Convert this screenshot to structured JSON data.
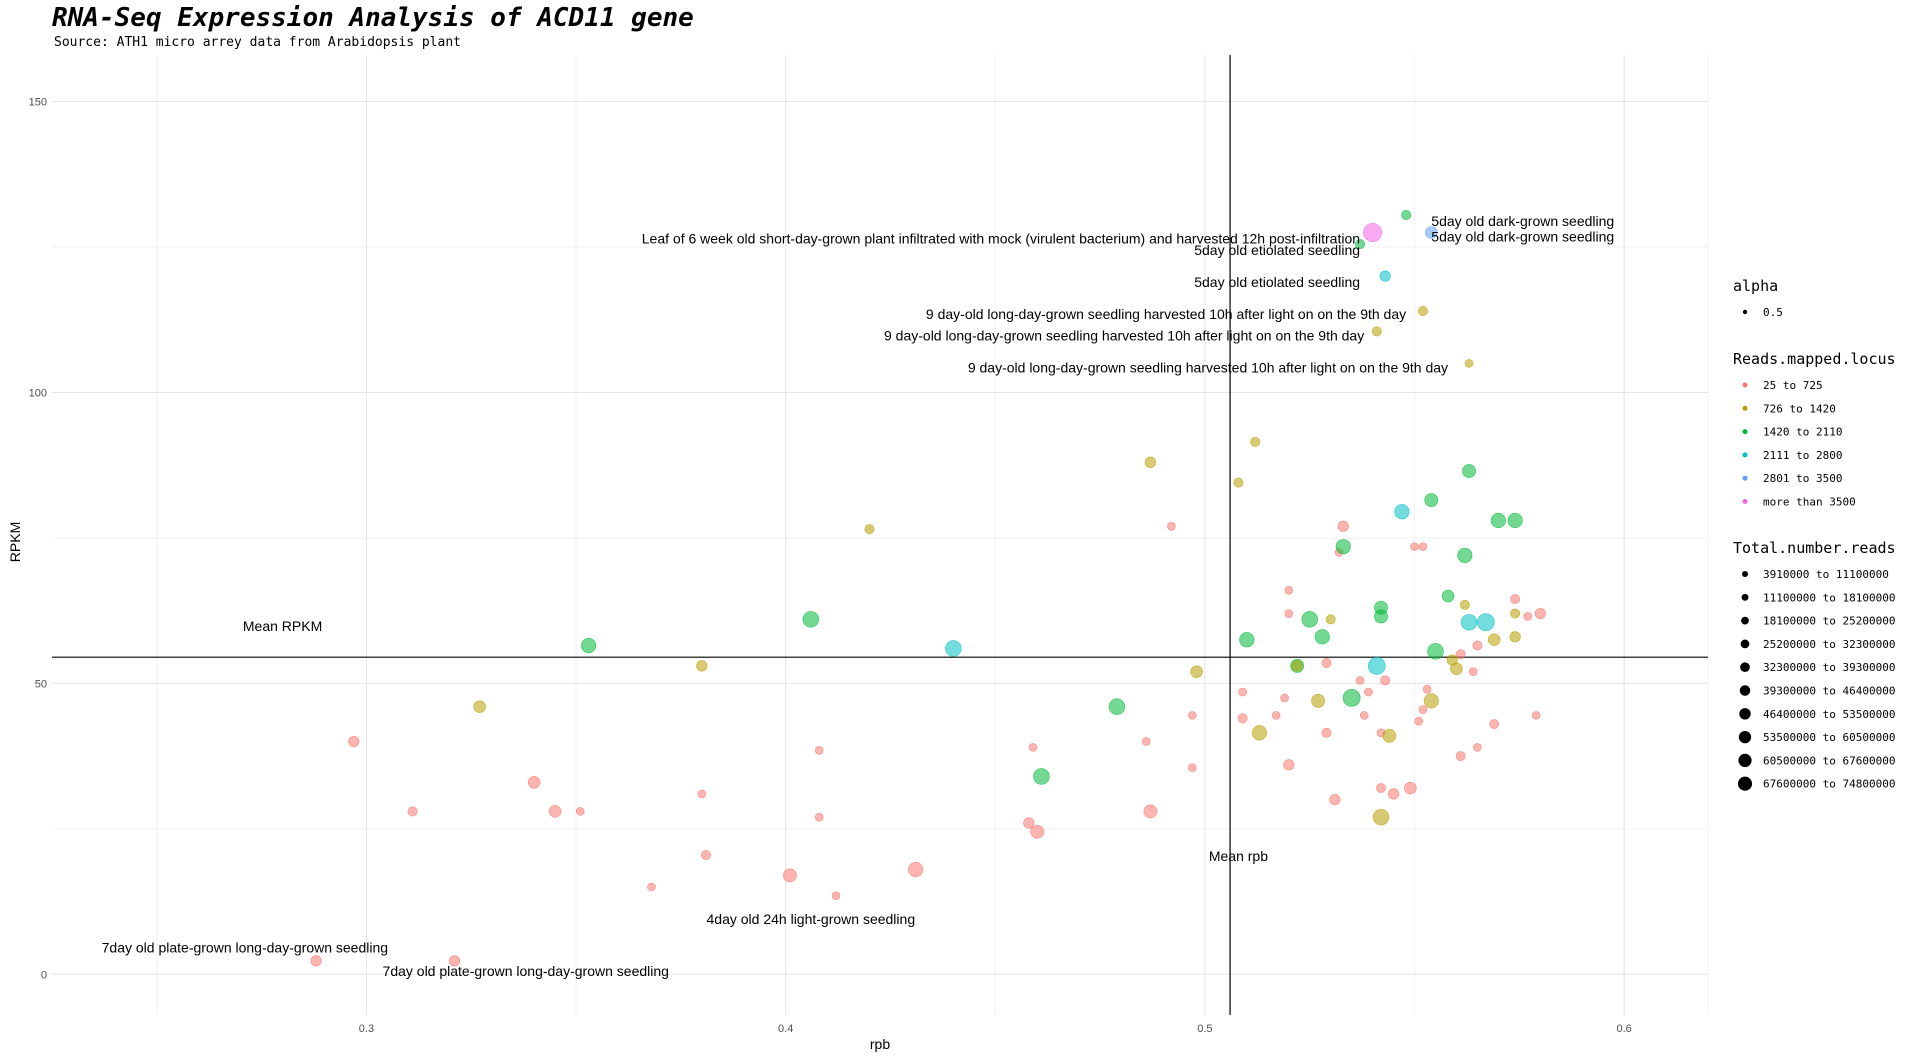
{
  "chart_data": {
    "type": "scatter",
    "title": "RNA-Seq Expression Analysis of ACD11 gene",
    "subtitle": "Source: ATH1 micro arrey data from Arabidopsis plant",
    "xlabel": "rpb",
    "ylabel": "RPKM",
    "xlim": [
      0.225,
      0.62
    ],
    "ylim": [
      -7,
      158
    ],
    "xticks": [
      0.3,
      0.4,
      0.5,
      0.6
    ],
    "yticks": [
      0,
      50,
      100,
      150
    ],
    "grid": true,
    "legend_position": "right",
    "reference_lines": [
      {
        "orientation": "horizontal",
        "value": 54.5,
        "label": "Mean RPKM",
        "label_x": 0.28,
        "label_y": 59
      },
      {
        "orientation": "vertical",
        "value": 0.506,
        "label": "Mean rpb",
        "label_x": 0.508,
        "label_y": 19.5
      }
    ],
    "legend": {
      "alpha": {
        "title": "alpha",
        "entries": [
          "0.5"
        ]
      },
      "color": {
        "title": "Reads.mapped.locus",
        "entries": [
          {
            "label": "25 to 725",
            "color": "#F8766D"
          },
          {
            "label": "726 to 1420",
            "color": "#B79F00"
          },
          {
            "label": "1420 to 2110",
            "color": "#00BA38"
          },
          {
            "label": "2111 to 2800",
            "color": "#00BFC4"
          },
          {
            "label": "2801 to 3500",
            "color": "#619CFF"
          },
          {
            "label": "more than 3500",
            "color": "#F564E3"
          }
        ]
      },
      "size": {
        "title": "Total.number.reads",
        "entries": [
          "3910000 to 11100000",
          "11100000 to 18100000",
          "18100000 to 25200000",
          "25200000 to 32300000",
          "32300000 to 39300000",
          "39300000 to 46400000",
          "46400000 to 53500000",
          "53500000 to 60500000",
          "60500000 to 67600000",
          "67600000 to 74800000"
        ]
      }
    },
    "points": [
      {
        "x": 0.288,
        "y": 2.3,
        "c": 0,
        "s": 2
      },
      {
        "x": 0.321,
        "y": 2.3,
        "c": 0,
        "s": 2
      },
      {
        "x": 0.297,
        "y": 40,
        "c": 0,
        "s": 2
      },
      {
        "x": 0.311,
        "y": 28,
        "c": 0,
        "s": 1
      },
      {
        "x": 0.327,
        "y": 46,
        "c": 1,
        "s": 3
      },
      {
        "x": 0.34,
        "y": 33,
        "c": 0,
        "s": 3
      },
      {
        "x": 0.345,
        "y": 28,
        "c": 0,
        "s": 3
      },
      {
        "x": 0.351,
        "y": 28,
        "c": 0,
        "s": 0
      },
      {
        "x": 0.353,
        "y": 56.5,
        "c": 2,
        "s": 5
      },
      {
        "x": 0.368,
        "y": 15,
        "c": 0,
        "s": 0
      },
      {
        "x": 0.38,
        "y": 53,
        "c": 1,
        "s": 2
      },
      {
        "x": 0.38,
        "y": 31,
        "c": 0,
        "s": 0
      },
      {
        "x": 0.381,
        "y": 20.5,
        "c": 0,
        "s": 1
      },
      {
        "x": 0.401,
        "y": 17,
        "c": 0,
        "s": 4
      },
      {
        "x": 0.406,
        "y": 61,
        "c": 2,
        "s": 6
      },
      {
        "x": 0.408,
        "y": 38.5,
        "c": 0,
        "s": 0
      },
      {
        "x": 0.408,
        "y": 27,
        "c": 0,
        "s": 0
      },
      {
        "x": 0.412,
        "y": 13.5,
        "c": 0,
        "s": 0
      },
      {
        "x": 0.42,
        "y": 76.5,
        "c": 1,
        "s": 1
      },
      {
        "x": 0.431,
        "y": 18,
        "c": 0,
        "s": 5
      },
      {
        "x": 0.44,
        "y": 56,
        "c": 3,
        "s": 6
      },
      {
        "x": 0.458,
        "y": 26,
        "c": 0,
        "s": 2
      },
      {
        "x": 0.459,
        "y": 39,
        "c": 0,
        "s": 0
      },
      {
        "x": 0.46,
        "y": 24.5,
        "c": 0,
        "s": 4
      },
      {
        "x": 0.461,
        "y": 34,
        "c": 2,
        "s": 6
      },
      {
        "x": 0.479,
        "y": 46,
        "c": 2,
        "s": 6
      },
      {
        "x": 0.486,
        "y": 40,
        "c": 0,
        "s": 0
      },
      {
        "x": 0.487,
        "y": 88,
        "c": 1,
        "s": 2
      },
      {
        "x": 0.487,
        "y": 28,
        "c": 0,
        "s": 4
      },
      {
        "x": 0.492,
        "y": 77,
        "c": 0,
        "s": 0
      },
      {
        "x": 0.497,
        "y": 44.5,
        "c": 0,
        "s": 0
      },
      {
        "x": 0.497,
        "y": 35.5,
        "c": 0,
        "s": 0
      },
      {
        "x": 0.498,
        "y": 52,
        "c": 1,
        "s": 3
      },
      {
        "x": 0.508,
        "y": 84.5,
        "c": 1,
        "s": 1
      },
      {
        "x": 0.509,
        "y": 48.5,
        "c": 0,
        "s": 0
      },
      {
        "x": 0.509,
        "y": 44,
        "c": 0,
        "s": 1
      },
      {
        "x": 0.51,
        "y": 57.5,
        "c": 2,
        "s": 5
      },
      {
        "x": 0.512,
        "y": 91.5,
        "c": 1,
        "s": 1
      },
      {
        "x": 0.513,
        "y": 41.5,
        "c": 1,
        "s": 5
      },
      {
        "x": 0.517,
        "y": 44.5,
        "c": 0,
        "s": 0
      },
      {
        "x": 0.519,
        "y": 47.5,
        "c": 0,
        "s": 0
      },
      {
        "x": 0.52,
        "y": 66,
        "c": 0,
        "s": 0
      },
      {
        "x": 0.52,
        "y": 62,
        "c": 0,
        "s": 0
      },
      {
        "x": 0.52,
        "y": 36,
        "c": 0,
        "s": 2
      },
      {
        "x": 0.522,
        "y": 53,
        "c": 2,
        "s": 4
      },
      {
        "x": 0.522,
        "y": 53,
        "c": 1,
        "s": 2
      },
      {
        "x": 0.525,
        "y": 61,
        "c": 2,
        "s": 6
      },
      {
        "x": 0.527,
        "y": 47,
        "c": 1,
        "s": 4
      },
      {
        "x": 0.528,
        "y": 58,
        "c": 2,
        "s": 5
      },
      {
        "x": 0.529,
        "y": 53.5,
        "c": 0,
        "s": 1
      },
      {
        "x": 0.529,
        "y": 41.5,
        "c": 0,
        "s": 1
      },
      {
        "x": 0.53,
        "y": 61,
        "c": 1,
        "s": 1
      },
      {
        "x": 0.531,
        "y": 30,
        "c": 0,
        "s": 2
      },
      {
        "x": 0.532,
        "y": 72.5,
        "c": 0,
        "s": 0
      },
      {
        "x": 0.533,
        "y": 73.5,
        "c": 2,
        "s": 5
      },
      {
        "x": 0.533,
        "y": 77,
        "c": 0,
        "s": 2
      },
      {
        "x": 0.535,
        "y": 47.5,
        "c": 2,
        "s": 7
      },
      {
        "x": 0.537,
        "y": 50.5,
        "c": 0,
        "s": 0
      },
      {
        "x": 0.537,
        "y": 125.5,
        "c": 2,
        "s": 1
      },
      {
        "x": 0.538,
        "y": 44.5,
        "c": 0,
        "s": 0
      },
      {
        "x": 0.539,
        "y": 48.5,
        "c": 0,
        "s": 0
      },
      {
        "x": 0.54,
        "y": 127.5,
        "c": 5,
        "s": 8
      },
      {
        "x": 0.541,
        "y": 53,
        "c": 3,
        "s": 7
      },
      {
        "x": 0.541,
        "y": 110.5,
        "c": 1,
        "s": 1
      },
      {
        "x": 0.542,
        "y": 63,
        "c": 2,
        "s": 4
      },
      {
        "x": 0.542,
        "y": 61.5,
        "c": 2,
        "s": 4
      },
      {
        "x": 0.542,
        "y": 41.5,
        "c": 0,
        "s": 0
      },
      {
        "x": 0.542,
        "y": 32,
        "c": 0,
        "s": 1
      },
      {
        "x": 0.542,
        "y": 27,
        "c": 1,
        "s": 6
      },
      {
        "x": 0.543,
        "y": 120,
        "c": 3,
        "s": 2
      },
      {
        "x": 0.543,
        "y": 50.5,
        "c": 0,
        "s": 1
      },
      {
        "x": 0.544,
        "y": 41,
        "c": 1,
        "s": 4
      },
      {
        "x": 0.545,
        "y": 31,
        "c": 0,
        "s": 2
      },
      {
        "x": 0.547,
        "y": 79.5,
        "c": 3,
        "s": 5
      },
      {
        "x": 0.548,
        "y": 130.5,
        "c": 2,
        "s": 1
      },
      {
        "x": 0.549,
        "y": 32,
        "c": 0,
        "s": 3
      },
      {
        "x": 0.55,
        "y": 73.5,
        "c": 0,
        "s": 0
      },
      {
        "x": 0.551,
        "y": 43.5,
        "c": 0,
        "s": 0
      },
      {
        "x": 0.552,
        "y": 45.5,
        "c": 0,
        "s": 0
      },
      {
        "x": 0.552,
        "y": 73.5,
        "c": 0,
        "s": 0
      },
      {
        "x": 0.552,
        "y": 114,
        "c": 1,
        "s": 1
      },
      {
        "x": 0.553,
        "y": 49,
        "c": 0,
        "s": 0
      },
      {
        "x": 0.554,
        "y": 127.5,
        "c": 4,
        "s": 3
      },
      {
        "x": 0.554,
        "y": 47,
        "c": 1,
        "s": 5
      },
      {
        "x": 0.554,
        "y": 81.5,
        "c": 2,
        "s": 4
      },
      {
        "x": 0.555,
        "y": 55.5,
        "c": 2,
        "s": 6
      },
      {
        "x": 0.558,
        "y": 65,
        "c": 2,
        "s": 3
      },
      {
        "x": 0.559,
        "y": 54,
        "c": 1,
        "s": 2
      },
      {
        "x": 0.56,
        "y": 52.5,
        "c": 1,
        "s": 3
      },
      {
        "x": 0.561,
        "y": 37.5,
        "c": 0,
        "s": 1
      },
      {
        "x": 0.561,
        "y": 55,
        "c": 0,
        "s": 1
      },
      {
        "x": 0.562,
        "y": 72,
        "c": 2,
        "s": 5
      },
      {
        "x": 0.562,
        "y": 63.5,
        "c": 1,
        "s": 1
      },
      {
        "x": 0.563,
        "y": 86.5,
        "c": 2,
        "s": 4
      },
      {
        "x": 0.563,
        "y": 60.5,
        "c": 3,
        "s": 6
      },
      {
        "x": 0.563,
        "y": 105,
        "c": 1,
        "s": 0
      },
      {
        "x": 0.564,
        "y": 52,
        "c": 0,
        "s": 0
      },
      {
        "x": 0.565,
        "y": 56.5,
        "c": 0,
        "s": 1
      },
      {
        "x": 0.565,
        "y": 39,
        "c": 0,
        "s": 0
      },
      {
        "x": 0.567,
        "y": 60.5,
        "c": 3,
        "s": 7
      },
      {
        "x": 0.569,
        "y": 57.5,
        "c": 1,
        "s": 3
      },
      {
        "x": 0.569,
        "y": 43,
        "c": 0,
        "s": 1
      },
      {
        "x": 0.57,
        "y": 78,
        "c": 2,
        "s": 5
      },
      {
        "x": 0.574,
        "y": 78,
        "c": 2,
        "s": 5
      },
      {
        "x": 0.574,
        "y": 64.5,
        "c": 0,
        "s": 1
      },
      {
        "x": 0.574,
        "y": 62,
        "c": 1,
        "s": 1
      },
      {
        "x": 0.574,
        "y": 58,
        "c": 1,
        "s": 2
      },
      {
        "x": 0.577,
        "y": 61.5,
        "c": 0,
        "s": 0
      },
      {
        "x": 0.579,
        "y": 44.5,
        "c": 0,
        "s": 0
      },
      {
        "x": 0.58,
        "y": 62,
        "c": 0,
        "s": 2
      }
    ],
    "annotations": [
      {
        "text": "5day old dark-grown seedling",
        "x": 0.554,
        "y": 129.5,
        "anchor": "start"
      },
      {
        "text": "5day old dark-grown seedling",
        "x": 0.554,
        "y": 126.8,
        "anchor": "start"
      },
      {
        "text": "Leaf of 6 week old short-day-grown plant infiltrated with mock (virulent bacterium) and harvested 12h post-infiltration",
        "x": 0.537,
        "y": 126.5,
        "anchor": "end"
      },
      {
        "text": "5day old etiolated seedling",
        "x": 0.537,
        "y": 124.5,
        "anchor": "end"
      },
      {
        "text": "5day old etiolated seedling",
        "x": 0.537,
        "y": 119,
        "anchor": "end"
      },
      {
        "text": "9 day-old long-day-grown seedling harvested 10h after light on on the 9th day",
        "x": 0.548,
        "y": 113.5,
        "anchor": "end"
      },
      {
        "text": "9 day-old long-day-grown seedling harvested 10h after light on on the 9th day",
        "x": 0.538,
        "y": 109.8,
        "anchor": "end"
      },
      {
        "text": "9 day-old long-day-grown seedling harvested 10h after light on on the 9th day",
        "x": 0.558,
        "y": 104.3,
        "anchor": "end"
      },
      {
        "text": "4day old 24h light-grown seedling",
        "x": 0.406,
        "y": 9.5,
        "anchor": "middle"
      },
      {
        "text": "7day old plate-grown long-day-grown seedling",
        "x": 0.271,
        "y": 4.6,
        "anchor": "middle"
      },
      {
        "text": "7day old plate-grown long-day-grown seedling",
        "x": 0.338,
        "y": 0.6,
        "anchor": "middle"
      }
    ]
  }
}
